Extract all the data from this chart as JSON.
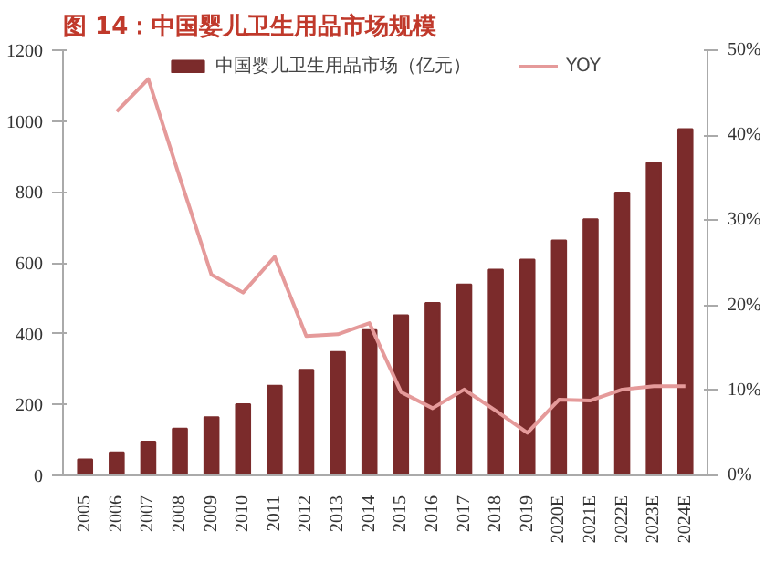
{
  "chart_data": {
    "type": "bar",
    "title": "图 14：中国婴儿卫生用品市场规模",
    "categories": [
      "2005",
      "2006",
      "2007",
      "2008",
      "2009",
      "2010",
      "2011",
      "2012",
      "2013",
      "2014",
      "2015",
      "2016",
      "2017",
      "2018",
      "2019",
      "2020E",
      "2021E",
      "2022E",
      "2023E",
      "2024E"
    ],
    "series": [
      {
        "name": "中国婴儿卫生用品市场（亿元）",
        "color": "#7b2b2b",
        "values": [
          45,
          65,
          95,
          132,
          164,
          201,
          253,
          298,
          348,
          410,
          452,
          487,
          539,
          581,
          609,
          663,
          723,
          798,
          882,
          977
        ]
      },
      {
        "name": "YOY",
        "type": "line",
        "axis": "y2",
        "color": "#e59a9a",
        "values": [
          null,
          42.8,
          46.6,
          35,
          23.6,
          21.5,
          25.7,
          16.4,
          16.6,
          17.9,
          9.8,
          7.9,
          10.1,
          7.6,
          5.0,
          8.9,
          8.8,
          10.1,
          10.5,
          10.5
        ]
      }
    ],
    "ylim": [
      0,
      1200
    ],
    "yticks": [
      0,
      200,
      400,
      600,
      800,
      1000,
      1200
    ],
    "y2lim": [
      0,
      50
    ],
    "y2ticks": [
      {
        "value": 0,
        "label": "0%"
      },
      {
        "value": 10,
        "label": "10%"
      },
      {
        "value": 20,
        "label": "20%"
      },
      {
        "value": 30,
        "label": "30%"
      },
      {
        "value": 40,
        "label": "40%"
      },
      {
        "value": 50,
        "label": "50%"
      }
    ],
    "grid": false,
    "legend": "top"
  }
}
